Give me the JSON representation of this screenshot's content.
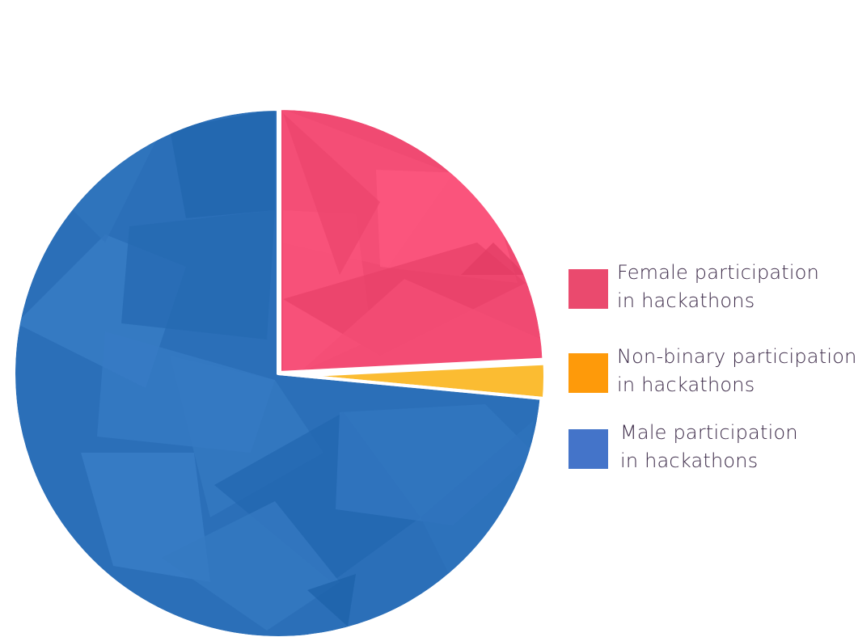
{
  "chart_data": {
    "type": "pie",
    "title": "",
    "start_angle": "12 o'clock, clockwise",
    "slices": [
      {
        "label_line1": "Female participation",
        "label_line2": "in hackathons",
        "value": 24.2,
        "color": "#f04a72",
        "legend_color": "#ea4a6e"
      },
      {
        "label_line1": "Non-binary participation",
        "label_line2": "in hackathons",
        "value": 2.3,
        "color": "#fbbc32",
        "legend_color": "#fe9a0a"
      },
      {
        "label_line1": "Male participation",
        "label_line2": "in hackathons",
        "value": 73.5,
        "color": "#2b6fb8",
        "legend_color": "#4474c9"
      }
    ],
    "legend_position": "right"
  }
}
